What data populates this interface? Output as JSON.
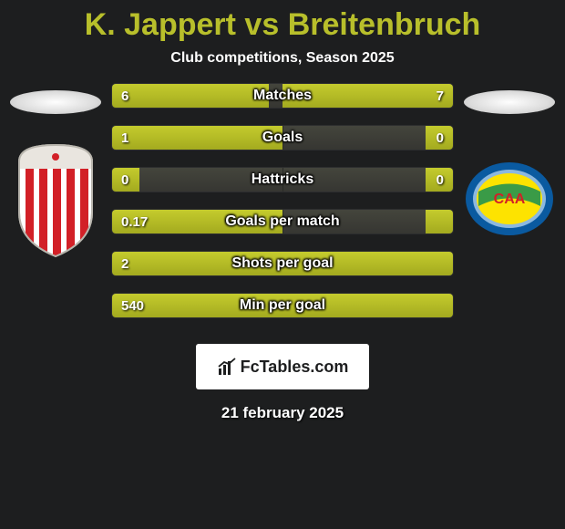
{
  "title_left": "K. Jappert",
  "title_vs": "vs",
  "title_right": "Breitenbruch",
  "subtitle": "Club competitions, Season 2025",
  "bars": [
    {
      "label": "Matches",
      "left_val": "6",
      "right_val": "7",
      "left_pct": 46,
      "right_pct": 50
    },
    {
      "label": "Goals",
      "left_val": "1",
      "right_val": "0",
      "left_pct": 50,
      "right_pct": 8
    },
    {
      "label": "Hattricks",
      "left_val": "0",
      "right_val": "0",
      "left_pct": 8,
      "right_pct": 8
    },
    {
      "label": "Goals per match",
      "left_val": "0.17",
      "right_val": "",
      "left_pct": 50,
      "right_pct": 8
    },
    {
      "label": "Shots per goal",
      "left_val": "2",
      "right_val": "",
      "left_pct": 50,
      "right_pct": 50
    },
    {
      "label": "Min per goal",
      "left_val": "540",
      "right_val": "",
      "left_pct": 50,
      "right_pct": 50
    }
  ],
  "logo_text": "FcTables.com",
  "date": "21 february 2025",
  "colors": {
    "accent": "#b8bf2b",
    "bg": "#1d1e1f",
    "fill": "#b4bb26",
    "bar_bg": "#3e3f38"
  },
  "crest_left": {
    "bg": "#ffffff",
    "stripes": "#d22027",
    "top": "#e9e5df"
  },
  "crest_right": {
    "ring": "#0a5aa0",
    "inner_bg": "#fde300",
    "band": "#3a9b47",
    "letters": "CAA"
  }
}
